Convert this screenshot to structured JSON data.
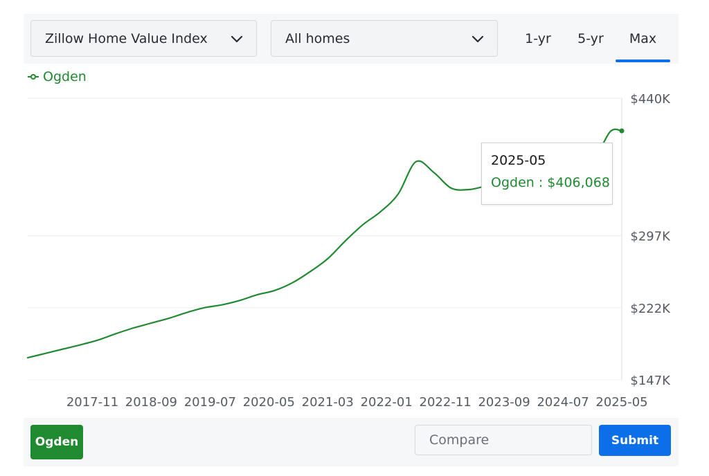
{
  "controls": {
    "metric_select": "Zillow Home Value Index",
    "home_type_select": "All homes",
    "range_tabs": [
      "1-yr",
      "5-yr",
      "Max"
    ],
    "active_range": "Max"
  },
  "legend": {
    "series_name": "Ogden"
  },
  "tooltip": {
    "date": "2025-05",
    "label": "Ogden : $406,068"
  },
  "footer": {
    "selected_region": "Ogden",
    "compare_placeholder": "Compare",
    "submit_label": "Submit"
  },
  "colors": {
    "series": "#1f8a2f",
    "accent": "#0d6fe8"
  },
  "chart_data": {
    "type": "line",
    "series": [
      {
        "name": "Ogden",
        "x": [
          "2016-12",
          "2017-03",
          "2017-06",
          "2017-09",
          "2017-12",
          "2018-03",
          "2018-06",
          "2018-09",
          "2018-12",
          "2019-03",
          "2019-06",
          "2019-09",
          "2019-12",
          "2020-03",
          "2020-06",
          "2020-09",
          "2020-12",
          "2021-03",
          "2021-06",
          "2021-09",
          "2021-12",
          "2022-03",
          "2022-06",
          "2022-09",
          "2022-12",
          "2023-03",
          "2023-06",
          "2023-09",
          "2023-12",
          "2024-03",
          "2024-06",
          "2024-09",
          "2024-12",
          "2025-03",
          "2025-05"
        ],
        "y": [
          170000,
          174500,
          179000,
          183500,
          188500,
          195000,
          201000,
          206000,
          211000,
          217000,
          222000,
          225000,
          229500,
          235500,
          240000,
          248000,
          259500,
          273000,
          291500,
          308500,
          322000,
          340500,
          374000,
          363000,
          346500,
          345000,
          349000,
          355000,
          363500,
          367500,
          366000,
          367000,
          373000,
          405000,
          406068
        ]
      }
    ],
    "x_ticks": [
      "2017-11",
      "2018-09",
      "2019-07",
      "2020-05",
      "2021-03",
      "2022-01",
      "2022-11",
      "2023-09",
      "2024-07",
      "2025-05"
    ],
    "y_ticks": [
      "$147K",
      "$222K",
      "$297K",
      "$440K"
    ],
    "y_tick_values": [
      147000,
      222000,
      297000,
      440000
    ],
    "ylim": [
      147000,
      440000
    ],
    "x_range": [
      "2016-12",
      "2025-05"
    ],
    "grid": true,
    "highlighted_point": "2025-05"
  }
}
